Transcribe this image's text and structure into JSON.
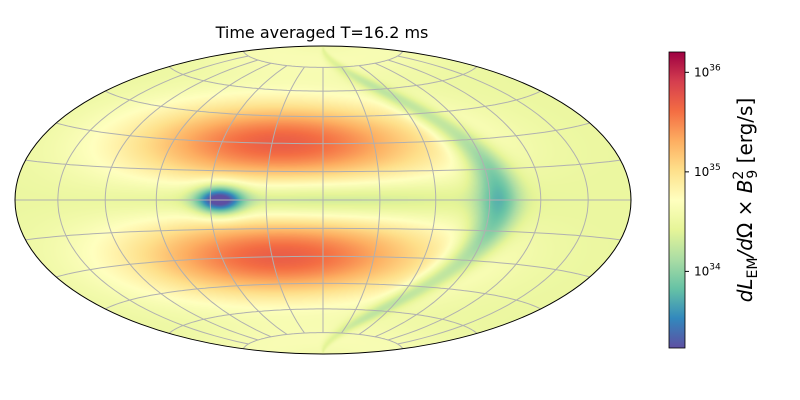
{
  "chart_data": {
    "type": "heatmap",
    "projection": "hammer (all-sky)",
    "title": "Time averaged T=16.2 ms",
    "grid": true,
    "colormap": "Spectral_r",
    "scale": "log",
    "colorbar": {
      "label": "dL_EM/dΩ × B_9^2 [erg/s]",
      "range": [
        1.7e+33,
        1.6e+36
      ],
      "ticks": [
        {
          "value": 1e+34,
          "label": "10^34"
        },
        {
          "value": 1e+35,
          "label": "10^35"
        },
        {
          "value": 1e+36,
          "label": "10^36"
        }
      ]
    },
    "features": [
      {
        "name": "minimum",
        "lon_deg": 55,
        "lat_deg": 0,
        "value": 2e+33
      },
      {
        "name": "upper-lobe",
        "lon_deg": 25,
        "lat_deg": 30,
        "value": 5e+35
      },
      {
        "name": "lower-lobe",
        "lon_deg": 25,
        "lat_deg": -30,
        "value": 5e+35
      },
      {
        "name": "dark-arc",
        "lon_deg": -95,
        "lat_deg": 0,
        "value": 6e+33
      }
    ],
    "base_level": 3e+34
  }
}
